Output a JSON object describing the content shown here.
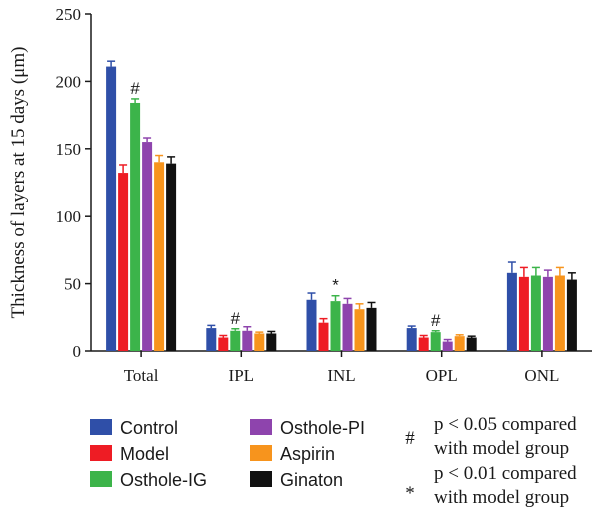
{
  "chart_data": {
    "type": "bar",
    "ylabel": "Thickness of layers at 15 days (μm)",
    "xlabel": "",
    "ylim": [
      0,
      250
    ],
    "yticks": [
      0,
      50,
      100,
      150,
      200,
      250
    ],
    "categories": [
      "Total",
      "IPL",
      "INL",
      "OPL",
      "ONL"
    ],
    "series": [
      {
        "name": "Control",
        "color": "#2f4fa8",
        "values": [
          211,
          17,
          38,
          17,
          58
        ],
        "errors": [
          4,
          2,
          5,
          1.5,
          8
        ]
      },
      {
        "name": "Model",
        "color": "#ee1c24",
        "values": [
          132,
          10,
          21,
          10,
          55
        ],
        "errors": [
          6,
          1.5,
          3,
          1.5,
          7
        ]
      },
      {
        "name": "Osthole-IG",
        "color": "#3cb44a",
        "values": [
          184,
          15,
          37,
          14,
          56
        ],
        "errors": [
          3,
          1.5,
          4,
          1,
          6
        ]
      },
      {
        "name": "Osthole-PI",
        "color": "#8e44ad",
        "values": [
          155,
          15,
          35,
          7,
          55
        ],
        "errors": [
          3,
          3,
          4,
          1.5,
          5
        ]
      },
      {
        "name": "Aspirin",
        "color": "#f7941d",
        "values": [
          140,
          13,
          31,
          11,
          56
        ],
        "errors": [
          5,
          1,
          4,
          1,
          6
        ]
      },
      {
        "name": "Ginaton",
        "color": "#111111",
        "values": [
          139,
          13,
          32,
          10,
          53
        ],
        "errors": [
          5,
          1.5,
          4,
          1,
          5
        ]
      }
    ],
    "annotations": [
      {
        "category": "Total",
        "series": "Osthole-IG",
        "symbol": "#"
      },
      {
        "category": "IPL",
        "series": "Osthole-IG",
        "symbol": "#"
      },
      {
        "category": "INL",
        "series": "Osthole-IG",
        "symbol": "*"
      },
      {
        "category": "OPL",
        "series": "Osthole-IG",
        "symbol": "#"
      }
    ],
    "notes": [
      {
        "symbol": "#",
        "text": "p < 0.05 compared with model group"
      },
      {
        "symbol": "*",
        "text": "p < 0.01 compared with model group"
      }
    ]
  }
}
